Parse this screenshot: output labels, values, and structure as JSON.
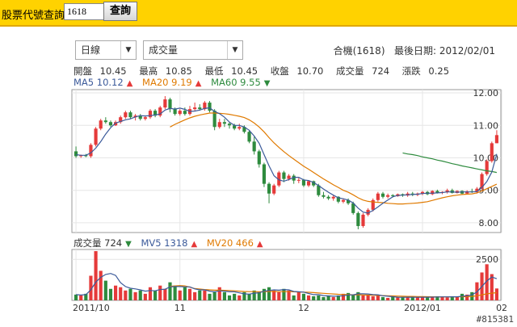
{
  "topbar": {
    "label": "股票代號查詢",
    "input_value": "1618",
    "button": "查詢"
  },
  "controls": {
    "period": "日線",
    "indicator": "成交量"
  },
  "header": {
    "code_info": "合機(1618)",
    "last_date_label": "最後日期:",
    "last_date": "2012/02/01"
  },
  "quote": [
    {
      "label": "開盤",
      "value": "10.45"
    },
    {
      "label": "最高",
      "value": "10.85"
    },
    {
      "label": "最低",
      "value": "10.45"
    },
    {
      "label": "收盤",
      "value": "10.70"
    },
    {
      "label": "成交量",
      "value": "724"
    },
    {
      "label": "漲跌",
      "value": "0.25"
    }
  ],
  "ma_legend": {
    "ma5": "MA5 10.12",
    "ma20": "MA20 9.19",
    "ma60": "MA60 9.55"
  },
  "vol_legend": {
    "vol": "成交量 724",
    "mv5": "MV5 1318",
    "mv20": "MV20 466"
  },
  "watermark": "#815381",
  "colors": {
    "up": "#E53A3A",
    "down": "#2E8B3E",
    "ma5": "#3B5A9A",
    "ma20": "#E07A00",
    "ma60": "#2E8B3E",
    "topbar": "#FFD200"
  },
  "chart_data": {
    "type": "candlestick",
    "price_axis": {
      "ticks": [
        "12.00",
        "11.00",
        "10.00",
        "9.00",
        "8.00"
      ],
      "range": [
        7.7,
        12.1
      ]
    },
    "volume_axis": {
      "ticks": [
        "2500"
      ],
      "range": [
        0,
        3100
      ]
    },
    "x_ticks": [
      {
        "label": "2011/10",
        "index": 0
      },
      {
        "label": "11",
        "index": 21
      },
      {
        "label": "12",
        "index": 46
      },
      {
        "label": "2012/01",
        "index": 70
      },
      {
        "label": "02",
        "index": 86
      }
    ],
    "candles": [
      [
        10.2,
        10.35,
        10.0,
        10.05
      ],
      [
        10.05,
        10.1,
        10.0,
        10.08
      ],
      [
        10.08,
        10.12,
        10.02,
        10.05
      ],
      [
        10.05,
        10.45,
        10.0,
        10.4
      ],
      [
        10.4,
        10.95,
        10.35,
        10.9
      ],
      [
        10.9,
        11.2,
        10.85,
        11.15
      ],
      [
        11.15,
        11.25,
        11.05,
        11.1
      ],
      [
        11.1,
        11.15,
        10.95,
        11.0
      ],
      [
        11.0,
        11.15,
        10.98,
        11.1
      ],
      [
        11.1,
        11.3,
        11.05,
        11.25
      ],
      [
        11.25,
        11.45,
        11.2,
        11.4
      ],
      [
        11.4,
        11.45,
        11.2,
        11.25
      ],
      [
        11.25,
        11.35,
        11.15,
        11.3
      ],
      [
        11.3,
        11.35,
        11.15,
        11.2
      ],
      [
        11.2,
        11.3,
        11.15,
        11.25
      ],
      [
        11.25,
        11.5,
        11.2,
        11.45
      ],
      [
        11.45,
        11.5,
        11.25,
        11.3
      ],
      [
        11.3,
        11.6,
        11.25,
        11.55
      ],
      [
        11.55,
        11.9,
        11.5,
        11.8
      ],
      [
        11.8,
        11.85,
        11.4,
        11.5
      ],
      [
        11.5,
        11.55,
        11.3,
        11.35
      ],
      [
        11.35,
        11.5,
        11.3,
        11.45
      ],
      [
        11.45,
        11.55,
        11.3,
        11.35
      ],
      [
        11.35,
        11.6,
        11.3,
        11.5
      ],
      [
        11.5,
        11.7,
        11.45,
        11.55
      ],
      [
        11.55,
        11.65,
        11.45,
        11.5
      ],
      [
        11.5,
        11.75,
        11.45,
        11.7
      ],
      [
        11.7,
        11.75,
        11.4,
        11.45
      ],
      [
        11.45,
        11.5,
        10.85,
        10.95
      ],
      [
        10.95,
        11.2,
        10.9,
        11.1
      ],
      [
        11.1,
        11.2,
        10.95,
        11.05
      ],
      [
        11.05,
        11.1,
        10.9,
        11.0
      ],
      [
        11.0,
        11.05,
        10.85,
        10.9
      ],
      [
        10.9,
        11.05,
        10.85,
        10.95
      ],
      [
        10.95,
        11.0,
        10.75,
        10.8
      ],
      [
        10.8,
        10.85,
        10.45,
        10.5
      ],
      [
        10.5,
        10.65,
        10.1,
        10.2
      ],
      [
        10.2,
        10.25,
        9.7,
        9.8
      ],
      [
        9.8,
        9.85,
        9.1,
        9.2
      ],
      [
        9.2,
        9.25,
        8.6,
        8.9
      ],
      [
        8.9,
        9.2,
        8.85,
        9.15
      ],
      [
        9.15,
        9.6,
        9.1,
        9.55
      ],
      [
        9.55,
        9.6,
        9.25,
        9.35
      ],
      [
        9.35,
        9.5,
        9.3,
        9.45
      ],
      [
        9.45,
        9.5,
        9.2,
        9.3
      ],
      [
        9.3,
        9.38,
        9.22,
        9.32
      ],
      [
        9.32,
        9.35,
        9.1,
        9.15
      ],
      [
        9.15,
        9.3,
        9.1,
        9.28
      ],
      [
        9.28,
        9.3,
        9.1,
        9.15
      ],
      [
        9.15,
        9.2,
        8.8,
        8.85
      ],
      [
        8.85,
        8.95,
        8.75,
        8.8
      ],
      [
        8.8,
        8.85,
        8.7,
        8.75
      ],
      [
        8.75,
        8.85,
        8.68,
        8.8
      ],
      [
        8.8,
        8.82,
        8.6,
        8.65
      ],
      [
        8.65,
        8.75,
        8.6,
        8.7
      ],
      [
        8.7,
        8.75,
        8.55,
        8.6
      ],
      [
        8.6,
        8.65,
        8.25,
        8.3
      ],
      [
        8.3,
        8.35,
        7.8,
        7.9
      ],
      [
        7.9,
        8.3,
        7.85,
        8.25
      ],
      [
        8.25,
        8.45,
        8.2,
        8.4
      ],
      [
        8.4,
        8.75,
        8.35,
        8.7
      ],
      [
        8.7,
        8.95,
        8.65,
        8.9
      ],
      [
        8.9,
        8.95,
        8.75,
        8.8
      ],
      [
        8.8,
        8.9,
        8.75,
        8.85
      ],
      [
        8.85,
        8.88,
        8.78,
        8.82
      ],
      [
        8.82,
        8.9,
        8.8,
        8.88
      ],
      [
        8.88,
        8.9,
        8.8,
        8.84
      ],
      [
        8.84,
        8.95,
        8.8,
        8.9
      ],
      [
        8.9,
        8.95,
        8.82,
        8.86
      ],
      [
        8.86,
        8.93,
        8.82,
        8.9
      ],
      [
        8.9,
        8.98,
        8.85,
        8.95
      ],
      [
        8.95,
        8.98,
        8.85,
        8.88
      ],
      [
        8.88,
        9.0,
        8.85,
        8.98
      ],
      [
        8.98,
        9.02,
        8.9,
        8.93
      ],
      [
        8.93,
        8.97,
        8.88,
        8.95
      ],
      [
        8.95,
        9.05,
        8.9,
        9.0
      ],
      [
        9.0,
        9.05,
        8.9,
        8.92
      ],
      [
        8.92,
        9.0,
        8.9,
        8.98
      ],
      [
        8.98,
        9.0,
        8.88,
        8.9
      ],
      [
        8.9,
        9.0,
        8.88,
        8.97
      ],
      [
        8.97,
        9.05,
        8.92,
        8.95
      ],
      [
        8.95,
        9.1,
        8.9,
        9.05
      ],
      [
        9.05,
        9.55,
        9.0,
        9.5
      ],
      [
        9.5,
        9.95,
        9.45,
        9.9
      ],
      [
        9.9,
        10.5,
        9.85,
        10.45
      ],
      [
        10.45,
        10.85,
        10.45,
        10.7
      ]
    ],
    "ma5": [
      10.1,
      10.08,
      10.08,
      10.15,
      10.3,
      10.5,
      10.73,
      10.93,
      11.07,
      11.12,
      11.17,
      11.2,
      11.26,
      11.3,
      11.29,
      11.3,
      11.32,
      11.35,
      11.47,
      11.52,
      11.5,
      11.53,
      11.49,
      11.43,
      11.44,
      11.47,
      11.52,
      11.54,
      11.43,
      11.36,
      11.25,
      11.1,
      11.0,
      11.0,
      10.95,
      10.85,
      10.67,
      10.45,
      10.1,
      9.75,
      9.45,
      9.32,
      9.28,
      9.33,
      9.4,
      9.4,
      9.32,
      9.3,
      9.24,
      9.15,
      9.04,
      8.94,
      8.85,
      8.77,
      8.74,
      8.7,
      8.61,
      8.45,
      8.33,
      8.3,
      8.38,
      8.49,
      8.6,
      8.7,
      8.8,
      8.84,
      8.85,
      8.86,
      8.87,
      8.88,
      8.9,
      8.91,
      8.91,
      8.92,
      8.93,
      8.95,
      8.95,
      8.94,
      8.95,
      8.95,
      8.95,
      8.96,
      9.09,
      9.27,
      9.56,
      10.12
    ],
    "ma20": [
      null,
      null,
      null,
      null,
      null,
      null,
      null,
      null,
      null,
      null,
      null,
      null,
      null,
      null,
      null,
      null,
      null,
      null,
      null,
      10.95,
      11.03,
      11.1,
      11.17,
      11.23,
      11.28,
      11.32,
      11.35,
      11.38,
      11.38,
      11.37,
      11.36,
      11.34,
      11.31,
      11.28,
      11.24,
      11.17,
      11.07,
      10.95,
      10.8,
      10.62,
      10.46,
      10.32,
      10.19,
      10.07,
      9.96,
      9.85,
      9.74,
      9.65,
      9.55,
      9.45,
      9.35,
      9.26,
      9.17,
      9.09,
      9.0,
      8.94,
      8.86,
      8.77,
      8.7,
      8.66,
      8.64,
      8.63,
      8.62,
      8.6,
      8.59,
      8.58,
      8.58,
      8.59,
      8.6,
      8.61,
      8.63,
      8.65,
      8.69,
      8.73,
      8.77,
      8.8,
      8.83,
      8.85,
      8.87,
      8.88,
      8.89,
      8.92,
      8.98,
      9.05,
      9.12,
      9.19
    ],
    "ma60": [
      null,
      null,
      null,
      null,
      null,
      null,
      null,
      null,
      null,
      null,
      null,
      null,
      null,
      null,
      null,
      null,
      null,
      null,
      null,
      null,
      null,
      null,
      null,
      null,
      null,
      null,
      null,
      null,
      null,
      null,
      null,
      null,
      null,
      null,
      null,
      null,
      null,
      null,
      null,
      null,
      null,
      null,
      null,
      null,
      null,
      null,
      null,
      null,
      null,
      null,
      null,
      null,
      null,
      null,
      null,
      null,
      null,
      null,
      null,
      null,
      null,
      null,
      null,
      null,
      null,
      null,
      10.15,
      10.12,
      10.1,
      10.07,
      10.03,
      10.0,
      9.97,
      9.93,
      9.9,
      9.86,
      9.82,
      9.79,
      9.75,
      9.72,
      9.69,
      9.66,
      9.63,
      9.6,
      9.58,
      9.55
    ],
    "volume": [
      350,
      300,
      400,
      1500,
      3000,
      1800,
      1200,
      700,
      900,
      800,
      600,
      700,
      500,
      600,
      400,
      800,
      600,
      900,
      700,
      1100,
      900,
      600,
      800,
      700,
      500,
      600,
      600,
      400,
      500,
      800,
      500,
      300,
      400,
      300,
      500,
      400,
      600,
      500,
      700,
      800,
      600,
      500,
      700,
      600,
      300,
      500,
      400,
      300,
      250,
      300,
      200,
      300,
      200,
      300,
      400,
      450,
      350,
      500,
      300,
      350,
      250,
      300,
      200,
      150,
      200,
      180,
      200,
      170,
      200,
      180,
      220,
      180,
      200,
      250,
      200,
      180,
      250,
      200,
      400,
      350,
      500,
      1100,
      1700,
      2200,
      1600,
      724
    ],
    "mv5": [
      350,
      325,
      350,
      638,
      1110,
      1400,
      1580,
      1640,
      1520,
      1080,
      840,
      740,
      700,
      640,
      560,
      600,
      580,
      660,
      680,
      820,
      840,
      840,
      820,
      820,
      700,
      640,
      640,
      560,
      520,
      580,
      560,
      520,
      520,
      460,
      400,
      380,
      440,
      460,
      560,
      600,
      640,
      620,
      660,
      640,
      540,
      520,
      500,
      420,
      350,
      350,
      290,
      270,
      250,
      260,
      280,
      330,
      340,
      400,
      400,
      390,
      350,
      340,
      280,
      250,
      220,
      190,
      186,
      190,
      190,
      186,
      194,
      190,
      196,
      206,
      210,
      212,
      216,
      216,
      256,
      276,
      340,
      510,
      850,
      1180,
      1420,
      1318
    ],
    "mv20": [
      null,
      null,
      null,
      null,
      null,
      null,
      null,
      null,
      null,
      null,
      null,
      null,
      null,
      null,
      null,
      null,
      null,
      null,
      null,
      850,
      880,
      900,
      880,
      800,
      720,
      690,
      660,
      640,
      620,
      620,
      610,
      600,
      580,
      560,
      540,
      530,
      530,
      520,
      530,
      540,
      540,
      530,
      530,
      530,
      520,
      510,
      500,
      490,
      470,
      450,
      430,
      410,
      390,
      370,
      360,
      350,
      340,
      340,
      330,
      320,
      310,
      300,
      290,
      280,
      270,
      260,
      250,
      240,
      240,
      230,
      225,
      220,
      215,
      212,
      210,
      210,
      212,
      214,
      220,
      228,
      240,
      280,
      340,
      400,
      440,
      466
    ]
  }
}
